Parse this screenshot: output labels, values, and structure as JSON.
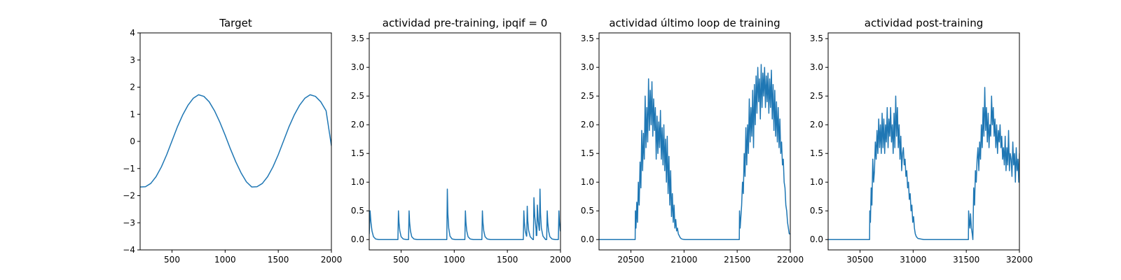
{
  "chart_data": [
    {
      "type": "line",
      "title": "Target",
      "xlim": [
        200,
        2000
      ],
      "ylim": [
        -4,
        4
      ],
      "x_ticks": [
        500,
        1000,
        1500,
        2000
      ],
      "x_tick_labels": [
        "500",
        "1000",
        "1500",
        "2000"
      ],
      "y_ticks": [
        -4,
        -3,
        -2,
        -1,
        0,
        1,
        2,
        3,
        4
      ],
      "y_tick_labels": [
        "−4",
        "−3",
        "−2",
        "−1",
        "0",
        "1",
        "2",
        "3",
        "4"
      ],
      "color": "#1f77b4",
      "series": [
        {
          "x": [
            200,
            250,
            300,
            350,
            400,
            450,
            500,
            550,
            600,
            650,
            700,
            750,
            800,
            850,
            900,
            950,
            1000,
            1050,
            1100,
            1150,
            1200,
            1250,
            1300,
            1350,
            1400,
            1450,
            1500,
            1550,
            1600,
            1650,
            1700,
            1750,
            1800,
            1850,
            1900,
            1950,
            2000
          ],
          "y": [
            -1.68,
            -1.67,
            -1.55,
            -1.3,
            -0.94,
            -0.49,
            0.02,
            0.53,
            0.97,
            1.33,
            1.59,
            1.72,
            1.66,
            1.46,
            1.13,
            0.71,
            0.23,
            -0.28,
            -0.75,
            -1.16,
            -1.49,
            -1.68,
            -1.67,
            -1.55,
            -1.3,
            -0.94,
            -0.49,
            0.02,
            0.53,
            0.97,
            1.33,
            1.59,
            1.72,
            1.66,
            1.46,
            1.13,
            -0.16
          ]
        }
      ]
    },
    {
      "type": "line",
      "title": "actividad pre-training, ipqif = 0",
      "xlim": [
        200,
        2000
      ],
      "ylim": [
        -0.18,
        3.6
      ],
      "x_ticks": [
        500,
        1000,
        1500,
        2000
      ],
      "x_tick_labels": [
        "500",
        "1000",
        "1500",
        "2000"
      ],
      "y_ticks": [
        0,
        0.5,
        1,
        1.5,
        2,
        2.5,
        3,
        3.5
      ],
      "y_tick_labels": [
        "0.0",
        "0.5",
        "1.0",
        "1.5",
        "2.0",
        "2.5",
        "3.0",
        "3.5"
      ],
      "color": "#1f77b4",
      "series": [
        {
          "x": [
            200,
            208,
            216,
            226,
            240,
            260,
            290,
            470,
            475,
            480,
            488,
            500,
            520,
            550,
            570,
            575,
            580,
            588,
            600,
            620,
            650,
            930,
            935,
            940,
            948,
            960,
            980,
            1010,
            1100,
            1105,
            1110,
            1118,
            1130,
            1150,
            1180,
            1260,
            1265,
            1270,
            1278,
            1290,
            1310,
            1340,
            1650,
            1655,
            1660,
            1668,
            1680,
            1682,
            1687,
            1692,
            1700,
            1715,
            1740,
            1745,
            1750,
            1758,
            1770,
            1772,
            1777,
            1782,
            1790,
            1800,
            1802,
            1807,
            1812,
            1820,
            1835,
            1860,
            1870,
            1875,
            1880,
            1888,
            1900,
            1920,
            1950,
            1980,
            1985,
            1990,
            1998
          ],
          "y": [
            0.1,
            0.5,
            0.3,
            0.15,
            0.05,
            0.01,
            0.0,
            0.0,
            0.5,
            0.3,
            0.15,
            0.05,
            0.01,
            0.0,
            0.0,
            0.5,
            0.3,
            0.15,
            0.05,
            0.01,
            0.0,
            0.0,
            0.88,
            0.45,
            0.2,
            0.06,
            0.01,
            0.0,
            0.0,
            0.5,
            0.3,
            0.15,
            0.05,
            0.01,
            0.0,
            0.0,
            0.5,
            0.3,
            0.15,
            0.05,
            0.01,
            0.0,
            0.0,
            0.5,
            0.3,
            0.15,
            0.06,
            0.06,
            0.58,
            0.33,
            0.16,
            0.05,
            0.0,
            0.0,
            0.73,
            0.4,
            0.18,
            0.07,
            0.07,
            0.6,
            0.33,
            0.16,
            0.16,
            0.88,
            0.45,
            0.2,
            0.06,
            0.0,
            0.0,
            0.5,
            0.3,
            0.15,
            0.05,
            0.01,
            0.0,
            0.0,
            0.5,
            0.3,
            0.15
          ]
        }
      ]
    },
    {
      "type": "line",
      "title": "actividad último loop de training",
      "xlim": [
        20200,
        22000
      ],
      "ylim": [
        -0.18,
        3.6
      ],
      "x_ticks": [
        20500,
        21000,
        21500,
        22000
      ],
      "x_tick_labels": [
        "20500",
        "21000",
        "21500",
        "22000"
      ],
      "y_ticks": [
        0,
        0.5,
        1,
        1.5,
        2,
        2.5,
        3,
        3.5
      ],
      "y_tick_labels": [
        "0.0",
        "0.5",
        "1.0",
        "1.5",
        "2.0",
        "2.5",
        "3.0",
        "3.5"
      ],
      "color": "#1f77b4",
      "series": [
        {
          "x": [
            20200,
            20540,
            20542,
            20548,
            20555,
            20562,
            20570,
            20578,
            20586,
            20594,
            20602,
            20610,
            20618,
            20626,
            20634,
            20642,
            20650,
            20658,
            20666,
            20674,
            20682,
            20690,
            20698,
            20706,
            20714,
            20722,
            20730,
            20738,
            20746,
            20754,
            20762,
            20770,
            20778,
            20786,
            20794,
            20802,
            20810,
            20818,
            20826,
            20834,
            20842,
            20850,
            20858,
            20866,
            20874,
            20882,
            20890,
            20898,
            20906,
            20914,
            20922,
            20930,
            20938,
            20946,
            20954,
            20962,
            20970,
            20980,
            20990,
            21010,
            21040,
            21520,
            21522,
            21528,
            21535,
            21542,
            21550,
            21558,
            21566,
            21574,
            21582,
            21590,
            21598,
            21606,
            21614,
            21622,
            21630,
            21638,
            21646,
            21654,
            21662,
            21670,
            21678,
            21686,
            21694,
            21702,
            21710,
            21718,
            21726,
            21734,
            21742,
            21750,
            21758,
            21766,
            21774,
            21782,
            21790,
            21798,
            21806,
            21814,
            21822,
            21830,
            21838,
            21846,
            21854,
            21862,
            21870,
            21878,
            21886,
            21894,
            21902,
            21910,
            21918,
            21926,
            21934,
            21942,
            21950,
            21958,
            21966,
            21974,
            21982,
            21990,
            22000
          ],
          "y": [
            0.0,
            0.0,
            0.5,
            0.2,
            0.65,
            0.3,
            1.0,
            0.6,
            1.35,
            0.9,
            1.9,
            1.2,
            1.85,
            1.4,
            2.5,
            1.6,
            2.3,
            1.7,
            2.8,
            1.9,
            2.6,
            2.0,
            2.75,
            1.8,
            2.45,
            1.9,
            2.3,
            1.4,
            2.15,
            1.5,
            2.05,
            1.6,
            2.25,
            1.4,
            1.95,
            1.3,
            2.0,
            1.2,
            1.75,
            1.0,
            1.8,
            0.8,
            1.45,
            0.6,
            1.2,
            0.4,
            0.8,
            0.3,
            0.6,
            0.2,
            0.35,
            0.15,
            0.2,
            0.1,
            0.07,
            0.04,
            0.02,
            0.01,
            0.005,
            0.0,
            0.0,
            0.0,
            0.5,
            0.2,
            0.4,
            0.6,
            1.0,
            0.8,
            1.5,
            1.1,
            1.95,
            1.3,
            2.0,
            1.5,
            2.45,
            1.7,
            2.3,
            1.8,
            2.6,
            1.6,
            2.7,
            2.0,
            2.85,
            2.2,
            3.0,
            2.4,
            2.8,
            2.1,
            3.05,
            2.3,
            2.9,
            2.5,
            3.0,
            2.3,
            2.85,
            2.4,
            2.9,
            2.2,
            2.8,
            2.3,
            2.95,
            2.1,
            2.7,
            1.9,
            2.6,
            1.8,
            2.4,
            1.7,
            2.3,
            1.6,
            2.1,
            1.5,
            1.7,
            1.3,
            1.4,
            1.0,
            0.9,
            0.6,
            0.5,
            0.3,
            0.2,
            0.1,
            0.1
          ]
        }
      ]
    },
    {
      "type": "line",
      "title": "actividad post-training",
      "xlim": [
        30200,
        32000
      ],
      "ylim": [
        -0.18,
        3.6
      ],
      "x_ticks": [
        30500,
        31000,
        31500,
        32000
      ],
      "x_tick_labels": [
        "30500",
        "31000",
        "31500",
        "32000"
      ],
      "y_ticks": [
        0,
        0.5,
        1,
        1.5,
        2,
        2.5,
        3,
        3.5
      ],
      "y_tick_labels": [
        "0.0",
        "0.5",
        "1.0",
        "1.5",
        "2.0",
        "2.5",
        "3.0",
        "3.5"
      ],
      "color": "#1f77b4",
      "series": [
        {
          "x": [
            30200,
            30590,
            30592,
            30598,
            30605,
            30612,
            30620,
            30628,
            30636,
            30644,
            30652,
            30660,
            30668,
            30676,
            30684,
            30692,
            30700,
            30708,
            30716,
            30724,
            30732,
            30740,
            30748,
            30756,
            30764,
            30772,
            30780,
            30788,
            30796,
            30804,
            30812,
            30820,
            30828,
            30836,
            30844,
            30852,
            30860,
            30868,
            30876,
            30884,
            30892,
            30900,
            30908,
            30916,
            30924,
            30932,
            30940,
            30948,
            30956,
            30964,
            30972,
            30980,
            30988,
            30996,
            31004,
            31012,
            31020,
            31030,
            31045,
            31070,
            31100,
            31130,
            31520,
            31522,
            31528,
            31534,
            31540,
            31548,
            31556,
            31562,
            31570,
            31578,
            31586,
            31594,
            31602,
            31610,
            31618,
            31626,
            31634,
            31642,
            31650,
            31658,
            31666,
            31674,
            31682,
            31690,
            31698,
            31706,
            31714,
            31722,
            31730,
            31738,
            31746,
            31754,
            31762,
            31770,
            31778,
            31786,
            31794,
            31802,
            31810,
            31818,
            31826,
            31834,
            31842,
            31850,
            31858,
            31866,
            31874,
            31882,
            31890,
            31898,
            31906,
            31914,
            31922,
            31930,
            31938,
            31946,
            31954,
            31962,
            31970,
            31978,
            31986,
            31994,
            32000
          ],
          "y": [
            0.0,
            0.0,
            0.5,
            0.3,
            0.9,
            0.6,
            1.4,
            1.0,
            1.2,
            1.7,
            1.4,
            1.9,
            1.5,
            2.1,
            1.6,
            2.0,
            1.5,
            2.2,
            1.6,
            2.1,
            1.5,
            2.0,
            1.7,
            2.3,
            1.6,
            2.1,
            1.8,
            2.3,
            1.7,
            2.0,
            1.5,
            2.2,
            1.6,
            2.5,
            1.8,
            2.3,
            1.6,
            2.0,
            1.4,
            1.8,
            1.2,
            1.5,
            1.6,
            1.3,
            1.4,
            1.1,
            1.2,
            0.9,
            1.0,
            0.7,
            0.8,
            0.5,
            0.6,
            0.3,
            0.4,
            0.2,
            0.1,
            0.05,
            0.02,
            0.01,
            0.0,
            0.0,
            0.0,
            0.5,
            0.3,
            0.2,
            0.45,
            0.2,
            0.1,
            0.0,
            0.9,
            0.6,
            1.2,
            1.0,
            1.4,
            1.6,
            1.2,
            1.7,
            1.4,
            2.0,
            1.6,
            2.3,
            1.8,
            2.65,
            1.9,
            2.3,
            1.7,
            2.2,
            1.6,
            2.0,
            1.8,
            2.5,
            2.0,
            2.3,
            1.8,
            2.1,
            1.6,
            2.0,
            1.5,
            1.9,
            1.7,
            2.0,
            1.6,
            1.8,
            1.4,
            1.6,
            1.3,
            1.8,
            1.2,
            1.6,
            1.3,
            1.9,
            1.2,
            1.5,
            1.4,
            1.1,
            1.7,
            1.3,
            1.5,
            1.0,
            1.6,
            1.2,
            1.4,
            1.0,
            1.5
          ]
        }
      ]
    }
  ]
}
